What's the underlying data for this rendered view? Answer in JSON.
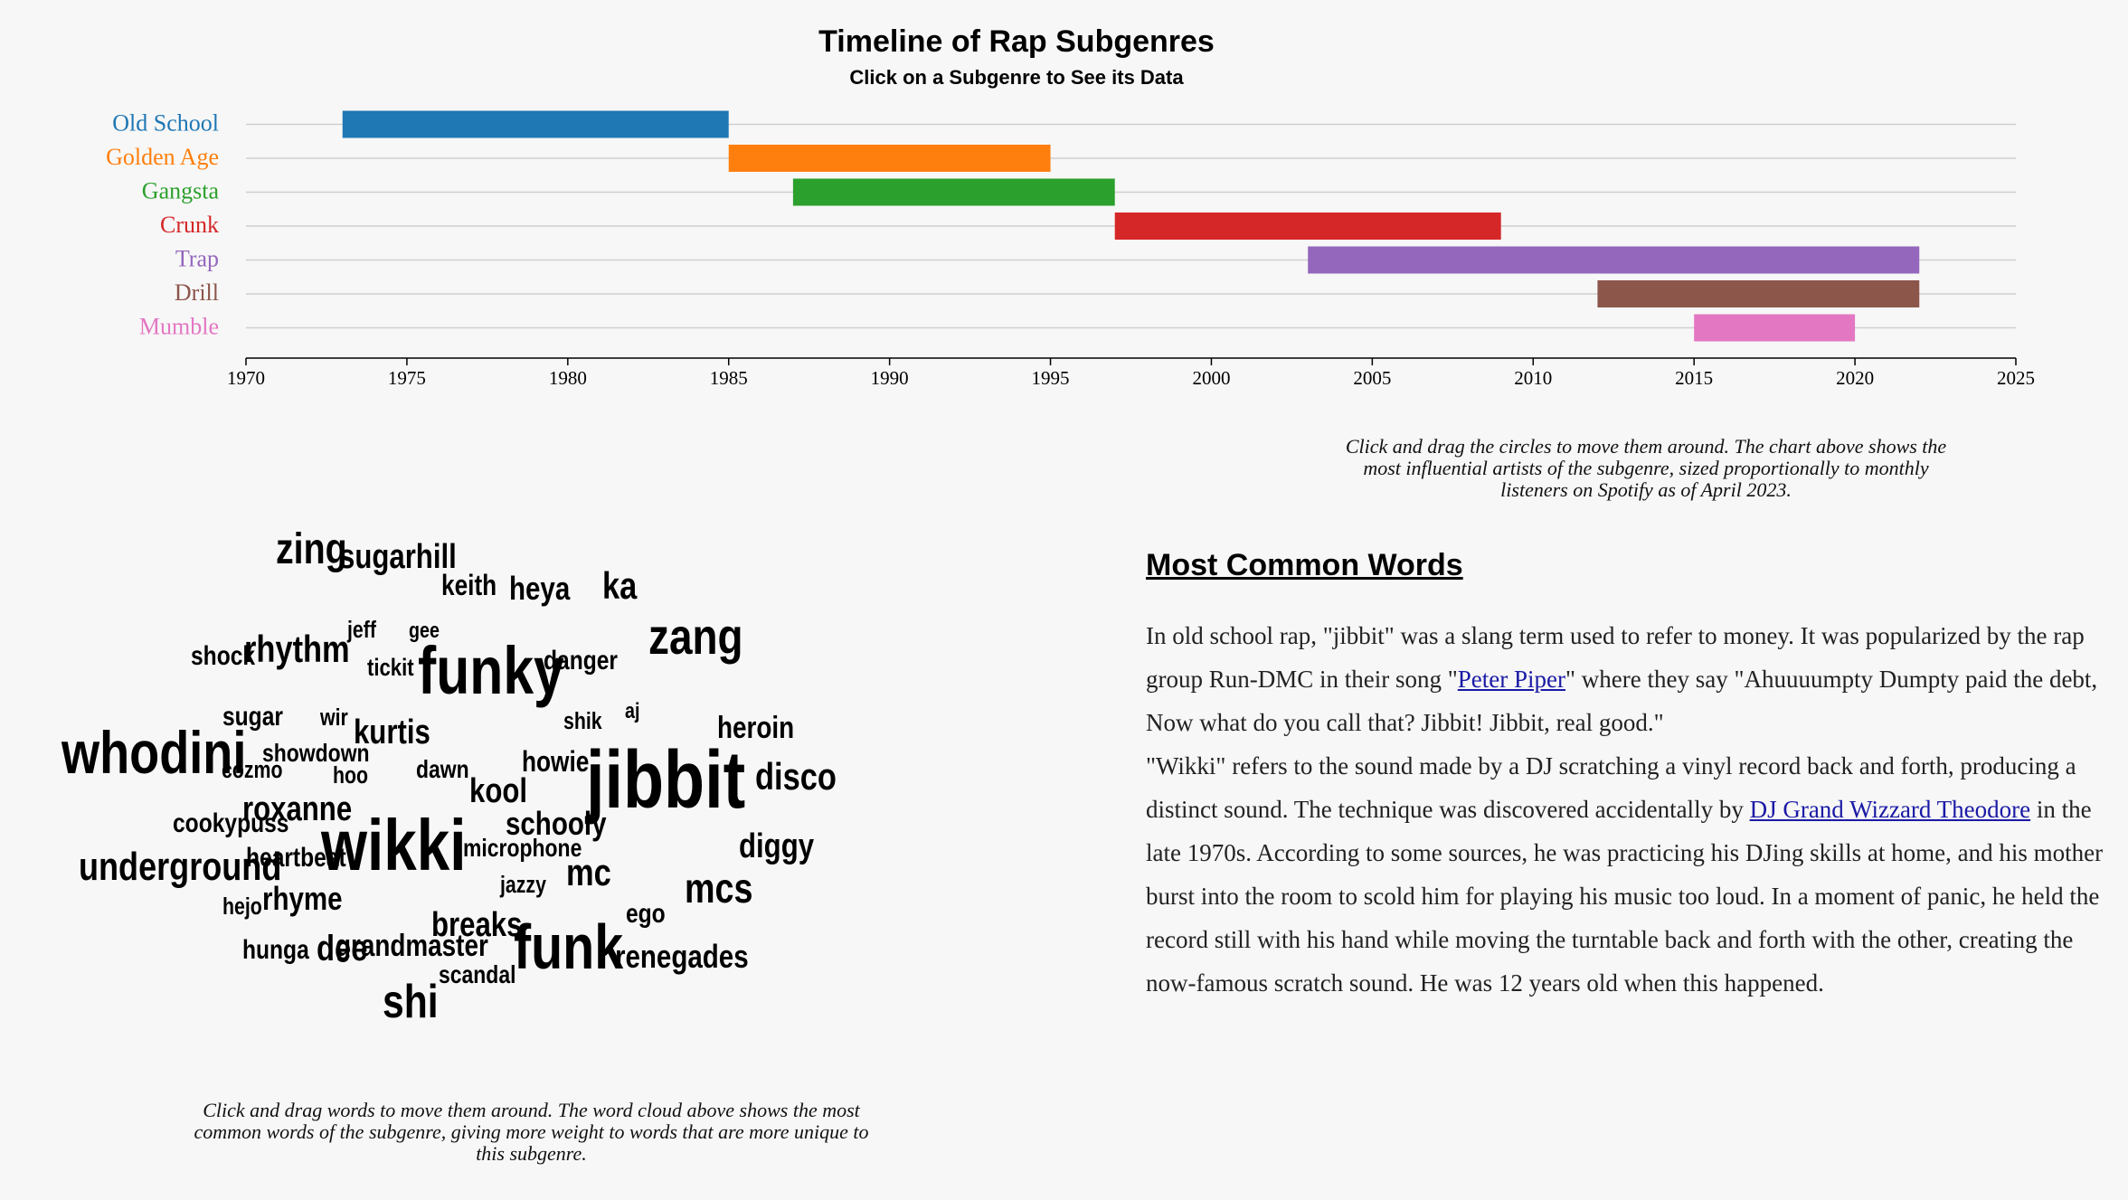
{
  "timeline": {
    "title": "Timeline of Rap Subgenres",
    "subtitle": "Click on a Subgenre to See its Data"
  },
  "chart_data": {
    "type": "bar",
    "orientation": "horizontal-range",
    "title": "Timeline of Rap Subgenres",
    "subtitle": "Click on a Subgenre to See its Data",
    "xlim": [
      1970,
      2025
    ],
    "x_ticks": [
      1970,
      1975,
      1980,
      1985,
      1990,
      1995,
      2000,
      2005,
      2010,
      2015,
      2020,
      2025
    ],
    "grid": true,
    "series": [
      {
        "name": "Old School",
        "start": 1973,
        "end": 1985,
        "color": "#1f77b4"
      },
      {
        "name": "Golden Age",
        "start": 1985,
        "end": 1995,
        "color": "#ff7f0e"
      },
      {
        "name": "Gangsta",
        "start": 1987,
        "end": 1997,
        "color": "#2ca02c"
      },
      {
        "name": "Crunk",
        "start": 1997,
        "end": 2009,
        "color": "#d62728"
      },
      {
        "name": "Trap",
        "start": 2003,
        "end": 2022,
        "color": "#9467bd"
      },
      {
        "name": "Drill",
        "start": 2012,
        "end": 2022,
        "color": "#8c564b"
      },
      {
        "name": "Mumble",
        "start": 2015,
        "end": 2020,
        "color": "#e377c2"
      }
    ]
  },
  "artist_caption": "Click and drag the circles to move them around. The chart above shows the most influential artists of the subgenre, sized proportionally to monthly listeners on Spotify as of April 2023.",
  "wordcloud": {
    "words": [
      "zing",
      "sugarhill",
      "keith",
      "heya",
      "ka",
      "jeff",
      "gee",
      "zang",
      "shock",
      "rhythm",
      "tickit",
      "funky",
      "danger",
      "sugar",
      "wir",
      "kurtis",
      "shik",
      "aj",
      "heroin",
      "whodini",
      "showdown",
      "cozmo",
      "hoo",
      "dawn",
      "howie",
      "jibbit",
      "disco",
      "kool",
      "roxanne",
      "cookypuss",
      "schooly",
      "wikki",
      "heartbeat",
      "microphone",
      "diggy",
      "underground",
      "mc",
      "jazzy",
      "mcs",
      "hejo",
      "rhyme",
      "breaks",
      "ego",
      "hunga",
      "dee",
      "grandmaster",
      "funk",
      "renegades",
      "scandal",
      "shi"
    ],
    "caption": "Click and drag words to move them around. The word cloud above shows the most common words of the subgenre, giving more weight to words that are more unique to this subgenre."
  },
  "common_words": {
    "heading": "Most Common Words",
    "p1_a": "In old school rap, \"jibbit\" was a slang term used to refer to money. It was popularized by the rap group Run-DMC in their song \"",
    "p1_link": "Peter Piper",
    "p1_b": "\" where they say \"Ahuuuumpty Dumpty paid the debt, Now what do you call that? Jibbit! Jibbit, real good.\"",
    "p2_a": "\"Wikki\" refers to the sound made by a DJ scratching a vinyl record back and forth, producing a distinct sound. The technique was discovered accidentally by ",
    "p2_link": "DJ Grand Wizzard Theodore",
    "p2_b": " in the late 1970s. According to some sources, he was practicing his DJing skills at home, and his mother burst into the room to scold him for playing his music too loud. In a moment of panic, he held the record still with his hand while moving the turntable back and forth with the other, creating the now-famous scratch sound. He was 12 years old when this happened."
  }
}
